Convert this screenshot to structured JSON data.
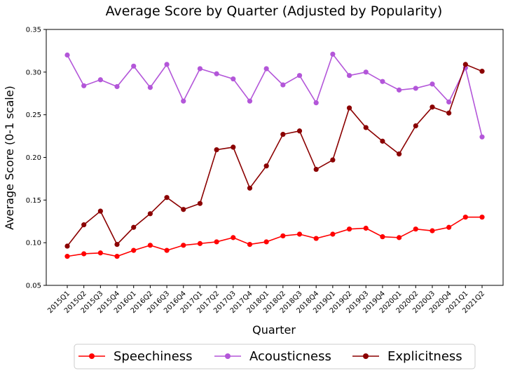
{
  "chart_data": {
    "type": "line",
    "title": "Average Score by Quarter (Adjusted by Popularity)",
    "xlabel": "Quarter",
    "ylabel": "Average Score (0-1 scale)",
    "ylim": [
      0.05,
      0.35
    ],
    "yticks": [
      "0.05",
      "0.10",
      "0.15",
      "0.20",
      "0.25",
      "0.30",
      "0.35"
    ],
    "grid": false,
    "legend_position": "bottom-center",
    "categories": [
      "2015Q1",
      "2015Q2",
      "2015Q3",
      "2015Q4",
      "2016Q1",
      "2016Q2",
      "2016Q3",
      "2016Q4",
      "2017Q1",
      "2017Q2",
      "2017Q3",
      "2017Q4",
      "2018Q1",
      "2018Q2",
      "2018Q3",
      "2018Q4",
      "2019Q1",
      "2019Q2",
      "2019Q3",
      "2019Q4",
      "2020Q1",
      "2020Q2",
      "2020Q3",
      "2020Q4",
      "2021Q1",
      "2021Q2"
    ],
    "series": [
      {
        "name": "Speechiness",
        "color": "#ff0000",
        "values": [
          0.084,
          0.087,
          0.088,
          0.084,
          0.091,
          0.097,
          0.091,
          0.097,
          0.099,
          0.101,
          0.106,
          0.098,
          0.101,
          0.108,
          0.11,
          0.105,
          0.11,
          0.116,
          0.117,
          0.107,
          0.106,
          0.116,
          0.114,
          0.118,
          0.13,
          0.13
        ]
      },
      {
        "name": "Acousticness",
        "color": "#b356d9",
        "values": [
          0.32,
          0.284,
          0.291,
          0.283,
          0.307,
          0.282,
          0.309,
          0.266,
          0.304,
          0.298,
          0.292,
          0.266,
          0.304,
          0.285,
          0.296,
          0.264,
          0.321,
          0.296,
          0.3,
          0.289,
          0.279,
          0.281,
          0.286,
          0.265,
          0.305,
          0.224
        ]
      },
      {
        "name": "Explicitness",
        "color": "#8b0000",
        "values": [
          0.096,
          0.121,
          0.137,
          0.098,
          0.118,
          0.134,
          0.153,
          0.139,
          0.146,
          0.209,
          0.212,
          0.164,
          0.19,
          0.227,
          0.231,
          0.186,
          0.197,
          0.258,
          0.235,
          0.219,
          0.204,
          0.237,
          0.259,
          0.252,
          0.309,
          0.301
        ]
      }
    ]
  }
}
